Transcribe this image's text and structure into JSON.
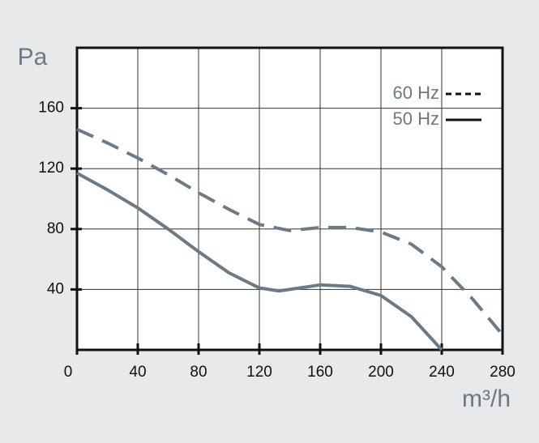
{
  "chart_data": {
    "type": "line",
    "ylabel": "Pa",
    "xlabel": "m³/h",
    "xlim": [
      0,
      280
    ],
    "xticks": [
      0,
      40,
      80,
      120,
      160,
      200,
      240,
      280
    ],
    "ylim": [
      0,
      200
    ],
    "yticks": [
      40,
      80,
      120,
      160
    ],
    "grid": true,
    "legend": "upper right",
    "series": [
      {
        "name": "60 Hz",
        "color": "#6b7a84",
        "dash": true,
        "x": [
          0,
          20,
          40,
          60,
          80,
          100,
          120,
          140,
          160,
          180,
          200,
          220,
          240,
          260,
          280
        ],
        "values": [
          146,
          137,
          127,
          116,
          104,
          93,
          83,
          79,
          81,
          81,
          78,
          70,
          55,
          34,
          10
        ]
      },
      {
        "name": "50 Hz",
        "color": "#6b7a84",
        "dash": false,
        "x": [
          0,
          20,
          40,
          60,
          80,
          100,
          120,
          133,
          160,
          180,
          200,
          220,
          240
        ],
        "values": [
          117,
          106,
          94,
          80,
          65,
          51,
          41,
          39,
          43,
          42,
          36,
          22,
          0
        ]
      }
    ]
  }
}
